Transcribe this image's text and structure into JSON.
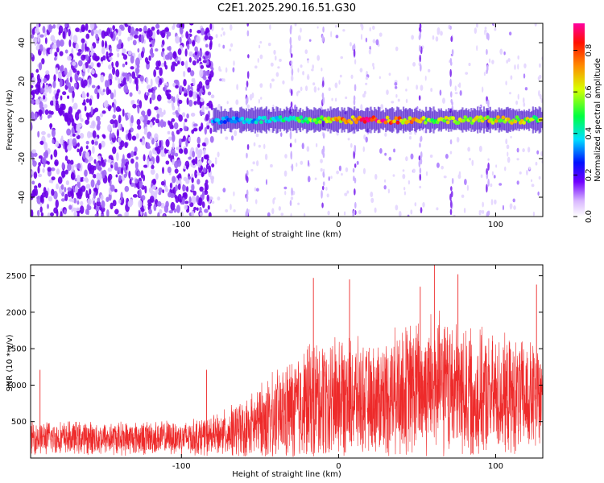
{
  "title": "C2E1.2025.290.16.51.G30",
  "colors": {
    "snr_line": "#ee2a2a",
    "speckle": "#6a00e8",
    "frame": "#000000"
  },
  "chart_data": [
    {
      "type": "heatmap",
      "title": "C2E1.2025.290.16.51.G30",
      "xlabel": "Height of straight line (km)",
      "ylabel": "Frequency (Hz)",
      "xlim": [
        -196,
        130
      ],
      "ylim": [
        -50,
        50
      ],
      "xticks": [
        -100,
        0,
        100
      ],
      "xtick_labels": [
        "-100",
        "0",
        "100"
      ],
      "yticks": [
        -40,
        -20,
        0,
        20,
        40
      ],
      "ytick_labels": [
        "-40",
        "-20",
        "0",
        "20",
        "40"
      ],
      "colorbar": {
        "label": "Normalized spectral amplitude",
        "range": [
          0,
          0.93
        ],
        "ticks": [
          0.0,
          0.2,
          0.4,
          0.6,
          0.8
        ],
        "tick_labels": [
          "0.0",
          "0.2",
          "0.4",
          "0.6",
          "0.8"
        ]
      },
      "noise_region_end_km": -80,
      "ridge": {
        "frequency_hz": 0,
        "start_km": -80,
        "amplitude_points": [
          {
            "x": -80,
            "amp": 0.35
          },
          {
            "x": -60,
            "amp": 0.38
          },
          {
            "x": -40,
            "amp": 0.45
          },
          {
            "x": -20,
            "amp": 0.55
          },
          {
            "x": 0,
            "amp": 0.7
          },
          {
            "x": 20,
            "amp": 0.92
          },
          {
            "x": 40,
            "amp": 0.78
          },
          {
            "x": 60,
            "amp": 0.6
          },
          {
            "x": 80,
            "amp": 0.62
          },
          {
            "x": 100,
            "amp": 0.65
          },
          {
            "x": 130,
            "amp": 0.6
          }
        ]
      },
      "vertical_streaks_km": [
        -58,
        -30,
        -10,
        10,
        52,
        72,
        95
      ]
    },
    {
      "type": "line",
      "xlabel": "Height of straight line (km)",
      "ylabel": "SNR (10 * v/v)",
      "xlim": [
        -196,
        130
      ],
      "ylim": [
        0,
        2650
      ],
      "xticks": [
        -100,
        0,
        100
      ],
      "xtick_labels": [
        "-100",
        "0",
        "100"
      ],
      "yticks": [
        500,
        1000,
        1500,
        2000,
        2500
      ],
      "ytick_labels": [
        "500",
        "1000",
        "1500",
        "2000",
        "2500"
      ],
      "envelope": [
        {
          "x": -196,
          "mean": 280,
          "spread": 250
        },
        {
          "x": -150,
          "mean": 270,
          "spread": 250
        },
        {
          "x": -100,
          "mean": 280,
          "spread": 260
        },
        {
          "x": -80,
          "mean": 300,
          "spread": 300
        },
        {
          "x": -60,
          "mean": 400,
          "spread": 450
        },
        {
          "x": -40,
          "mean": 550,
          "spread": 700
        },
        {
          "x": -20,
          "mean": 750,
          "spread": 900
        },
        {
          "x": 0,
          "mean": 850,
          "spread": 1000
        },
        {
          "x": 20,
          "mean": 800,
          "spread": 800
        },
        {
          "x": 40,
          "mean": 900,
          "spread": 1000
        },
        {
          "x": 60,
          "mean": 1000,
          "spread": 1100
        },
        {
          "x": 80,
          "mean": 900,
          "spread": 1000
        },
        {
          "x": 100,
          "mean": 850,
          "spread": 900
        },
        {
          "x": 130,
          "mean": 800,
          "spread": 850
        }
      ],
      "peaks": [
        {
          "x": -190,
          "y": 1210
        },
        {
          "x": -84,
          "y": 1210
        },
        {
          "x": -16,
          "y": 2470
        },
        {
          "x": 7,
          "y": 2450
        },
        {
          "x": 52,
          "y": 2350
        },
        {
          "x": 61,
          "y": 2650
        },
        {
          "x": 76,
          "y": 2520
        },
        {
          "x": 126,
          "y": 2380
        }
      ]
    }
  ]
}
